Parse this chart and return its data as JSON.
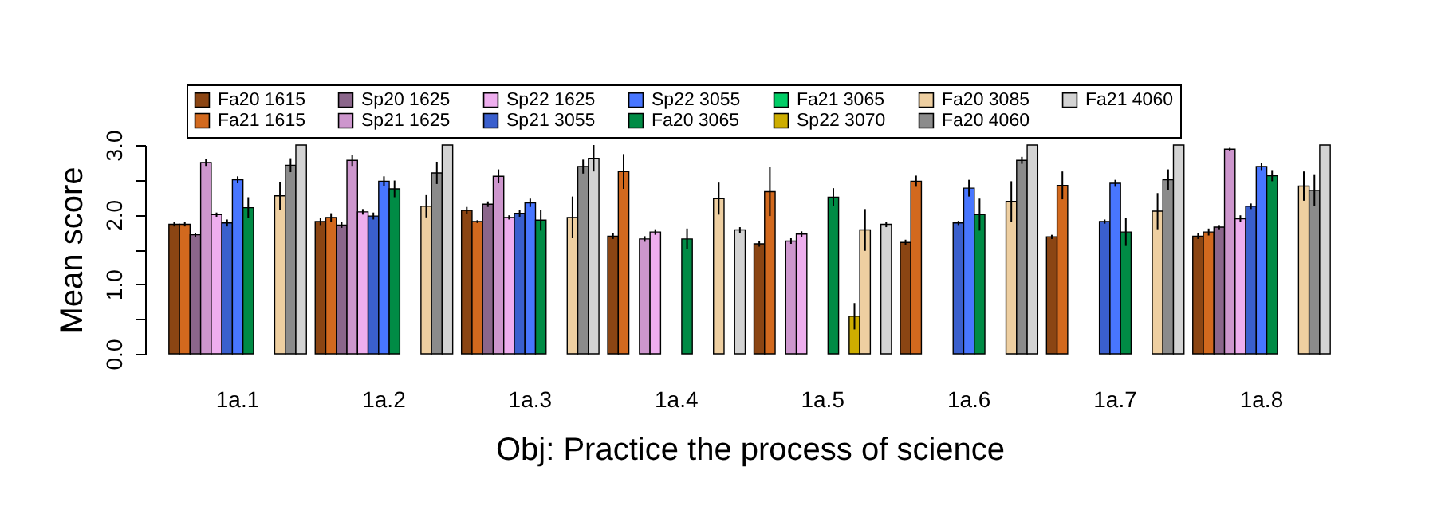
{
  "chart_data": {
    "type": "bar",
    "xlabel": "Obj: Practice the process of science",
    "ylabel": "Mean score",
    "categories": [
      "1a.1",
      "1a.2",
      "1a.3",
      "1a.4",
      "1a.5",
      "1a.6",
      "1a.7",
      "1a.8"
    ],
    "ylim": [
      0,
      3
    ],
    "yticks": [
      {
        "value": 0,
        "label": "0.0"
      },
      {
        "value": 0.5,
        "label": null
      },
      {
        "value": 1,
        "label": "1.0"
      },
      {
        "value": 1.5,
        "label": null
      },
      {
        "value": 2,
        "label": "2.0"
      },
      {
        "value": 2.5,
        "label": null
      },
      {
        "value": 3,
        "label": "3.0"
      }
    ],
    "legend": "top",
    "grid": false,
    "series": [
      {
        "name": "Fa20 1615",
        "color": "#8b4513",
        "values": [
          1.86,
          1.9,
          2.06,
          1.69,
          1.58,
          1.6,
          1.68,
          1.69
        ],
        "errors": [
          0.03,
          0.05,
          0.05,
          0.04,
          0.04,
          0.04,
          0.03,
          0.04
        ]
      },
      {
        "name": "Fa21 1615",
        "color": "#d2691e",
        "values": [
          1.86,
          1.96,
          1.9,
          2.62,
          2.33,
          2.48,
          2.42,
          1.75
        ],
        "errors": [
          0.03,
          0.06,
          0.02,
          0.25,
          0.35,
          0.08,
          0.2,
          0.05
        ]
      },
      {
        "name": "Sp20 1625",
        "color": "#8b668b",
        "values": [
          1.71,
          1.85,
          2.15,
          null,
          null,
          null,
          null,
          1.82
        ],
        "errors": [
          0.03,
          0.04,
          0.04,
          null,
          null,
          null,
          null,
          0.03
        ]
      },
      {
        "name": "Sp21 1625",
        "color": "#cd96cd",
        "values": [
          2.75,
          2.78,
          2.55,
          1.65,
          1.62,
          null,
          null,
          2.94
        ],
        "errors": [
          0.05,
          0.08,
          0.1,
          0.04,
          0.04,
          null,
          null,
          0.02
        ]
      },
      {
        "name": "Sp22 1625",
        "color": "#eeaeee",
        "values": [
          2.0,
          2.04,
          1.96,
          1.75,
          1.72,
          null,
          null,
          1.94
        ],
        "errors": [
          0.03,
          0.04,
          0.03,
          0.04,
          0.04,
          null,
          null,
          0.05
        ]
      },
      {
        "name": "Sp21 3055",
        "color": "#3a5fcd",
        "values": [
          1.88,
          1.98,
          2.02,
          null,
          null,
          1.88,
          1.9,
          2.12
        ],
        "errors": [
          0.05,
          0.05,
          0.05,
          null,
          null,
          0.03,
          0.03,
          0.04
        ]
      },
      {
        "name": "Sp22 3055",
        "color": "#4876ff",
        "values": [
          2.5,
          2.48,
          2.17,
          null,
          null,
          2.38,
          2.45,
          2.69
        ],
        "errors": [
          0.05,
          0.07,
          0.06,
          null,
          null,
          0.12,
          0.05,
          0.05
        ]
      },
      {
        "name": "Fa20 3065",
        "color": "#008b45",
        "values": [
          2.1,
          2.37,
          1.92,
          1.65,
          2.25,
          2.0,
          1.75,
          2.56
        ],
        "errors": [
          0.15,
          0.12,
          0.15,
          0.15,
          0.13,
          0.23,
          0.2,
          0.08
        ]
      },
      {
        "name": "Fa21 3065",
        "color": "#00cd66",
        "values": [
          null,
          null,
          null,
          null,
          null,
          null,
          null,
          null
        ]
      },
      {
        "name": "Sp22 3070",
        "color": "#cdad00",
        "values": [
          null,
          null,
          null,
          null,
          0.54,
          null,
          null,
          null
        ],
        "errors": [
          null,
          null,
          null,
          null,
          0.19,
          null,
          null,
          null
        ]
      },
      {
        "name": "Fa20 3085",
        "color": "#eecfa1",
        "values": [
          2.27,
          2.12,
          1.96,
          2.23,
          1.78,
          2.19,
          2.05,
          2.41
        ],
        "errors": [
          0.2,
          0.16,
          0.3,
          0.23,
          0.3,
          0.29,
          0.26,
          0.21
        ]
      },
      {
        "name": "Fa20 4060",
        "color": "#8b8b8b",
        "values": [
          2.71,
          2.6,
          2.69,
          null,
          null,
          2.78,
          2.5,
          2.35
        ],
        "errors": [
          0.1,
          0.16,
          0.1,
          null,
          null,
          0.05,
          0.15,
          0.23
        ]
      },
      {
        "name": "Fa21 4060",
        "color": "#d3d3d3",
        "values": [
          3.0,
          3.0,
          2.81,
          1.78,
          1.86,
          3.0,
          3.0,
          3.0
        ],
        "errors": [
          null,
          null,
          0.19,
          0.04,
          0.04,
          null,
          null,
          null
        ]
      }
    ]
  }
}
